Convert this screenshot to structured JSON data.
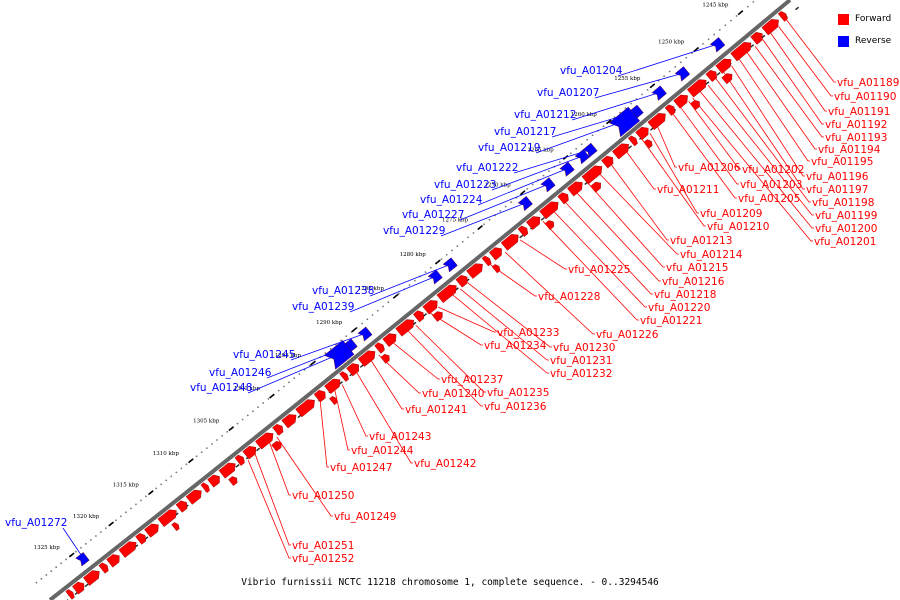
{
  "caption": "Vibrio furnissii NCTC 11218 chromosome 1, complete sequence. - 0..3294546",
  "legend": [
    {
      "label": "Forward",
      "color": "#ff0000"
    },
    {
      "label": "Reverse",
      "color": "#0000ff"
    }
  ],
  "colors": {
    "forward": "#ff0000",
    "reverse": "#0000ff",
    "backbone": "#666666"
  },
  "ticks": [
    "1245 kbp",
    "1250 kbp",
    "1255 kbp",
    "1260 kbp",
    "1265 kbp",
    "1270 kbp",
    "1275 kbp",
    "1280 kbp",
    "1285 kbp",
    "1290 kbp",
    "1295 kbp",
    "1300 kbp",
    "1305 kbp",
    "1310 kbp",
    "1315 kbp",
    "1320 kbp",
    "1325 kbp"
  ],
  "forward_genes": [
    "vfu_A01189",
    "vfu_A01190",
    "vfu_A01191",
    "vfu_A01192",
    "vfu_A01193",
    "vfu_A01194",
    "vfu_A01195",
    "vfu_A01196",
    "vfu_A01197",
    "vfu_A01198",
    "vfu_A01199",
    "vfu_A01200",
    "vfu_A01201",
    "vfu_A01202",
    "vfu_A01203",
    "vfu_A01205",
    "vfu_A01206",
    "vfu_A01209",
    "vfu_A01210",
    "vfu_A01211",
    "vfu_A01213",
    "vfu_A01214",
    "vfu_A01215",
    "vfu_A01216",
    "vfu_A01218",
    "vfu_A01220",
    "vfu_A01221",
    "vfu_A01225",
    "vfu_A01226",
    "vfu_A01228",
    "vfu_A01230",
    "vfu_A01231",
    "vfu_A01232",
    "vfu_A01233",
    "vfu_A01234",
    "vfu_A01235",
    "vfu_A01236",
    "vfu_A01237",
    "vfu_A01240",
    "vfu_A01241",
    "vfu_A01242",
    "vfu_A01243",
    "vfu_A01244",
    "vfu_A01247",
    "vfu_A01249",
    "vfu_A01250",
    "vfu_A01251",
    "vfu_A01252"
  ],
  "reverse_genes": [
    "vfu_A01204",
    "vfu_A01207",
    "vfu_A01212",
    "vfu_A01217",
    "vfu_A01219",
    "vfu_A01222",
    "vfu_A01223",
    "vfu_A01224",
    "vfu_A01227",
    "vfu_A01229",
    "vfu_A01238",
    "vfu_A01239",
    "vfu_A01245",
    "vfu_A01246",
    "vfu_A01248",
    "vfu_A01272"
  ]
}
